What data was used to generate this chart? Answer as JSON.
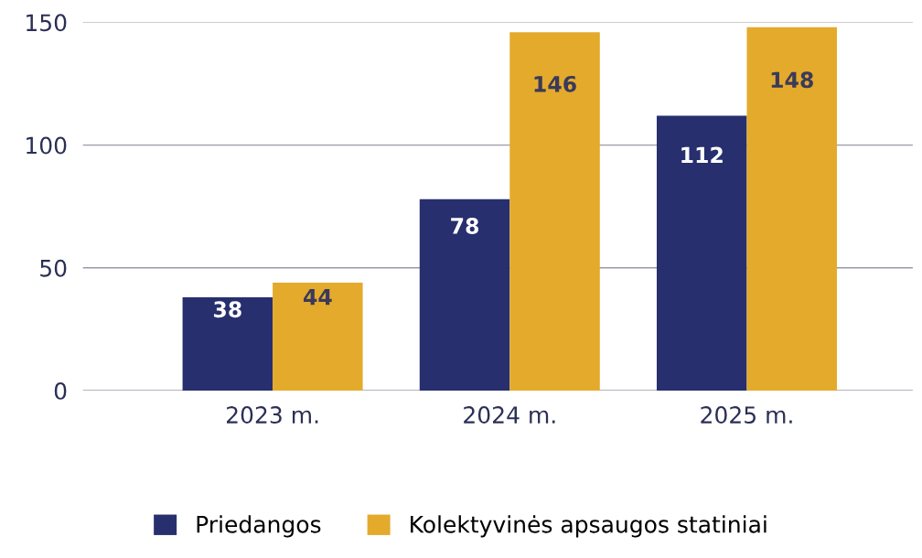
{
  "chart_data": {
    "type": "bar",
    "categories": [
      "2023 m.",
      "2024 m.",
      "2025 m."
    ],
    "series": [
      {
        "name": "Priedangos",
        "color": "#272f6e",
        "values": [
          38,
          78,
          112
        ]
      },
      {
        "name": "Kolektyvinės apsaugos statiniai",
        "color": "#e4aa2c",
        "values": [
          44,
          146,
          148
        ]
      }
    ],
    "ylim": [
      0,
      150
    ],
    "yticks": [
      0,
      50,
      100,
      150
    ],
    "grid": "y",
    "data_labels": true,
    "legend": "bottom"
  }
}
